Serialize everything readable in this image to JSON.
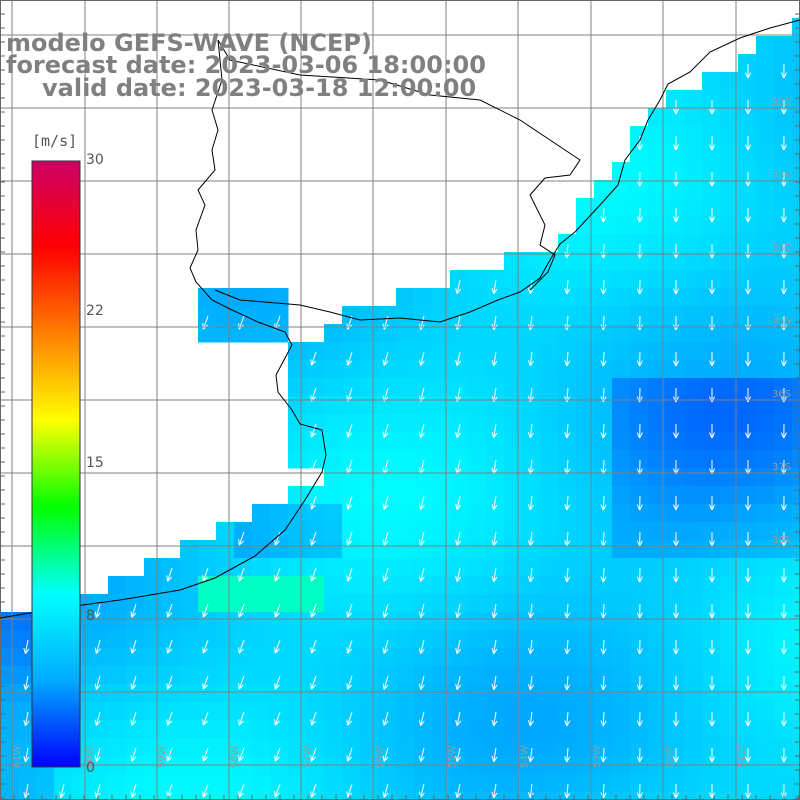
{
  "title": {
    "line1": "modelo GEFS-WAVE (NCEP)",
    "line2": "forecast date: 2023-03-06 18:00:00",
    "line3": "valid date: 2023-03-18 12:00:00"
  },
  "colorbar": {
    "unit": "[m/s]",
    "min": 0,
    "max": 30,
    "ticks": [
      "30",
      "22",
      "15",
      "8",
      "0"
    ],
    "tick_values": [
      30,
      22,
      15,
      8,
      0
    ],
    "colors": [
      "#0000ff",
      "#00aaff",
      "#00ffff",
      "#00ff00",
      "#ffff00",
      "#ff8000",
      "#ff0000",
      "#cc0066"
    ]
  },
  "map": {
    "land_color": "#ffffff",
    "grid_color": "#808080",
    "coastline_color": "#000000",
    "arrow_color": "#ffffff",
    "lat_labels": [
      "32S",
      "33S",
      "34S",
      "35S",
      "36S",
      "37S",
      "38S"
    ],
    "lon_labels": [
      "61W",
      "60W",
      "59W",
      "58W",
      "57W",
      "56W",
      "55W",
      "54W",
      "53W",
      "52W",
      "51W"
    ],
    "dominant_wind_direction": "from north-northeast"
  }
}
